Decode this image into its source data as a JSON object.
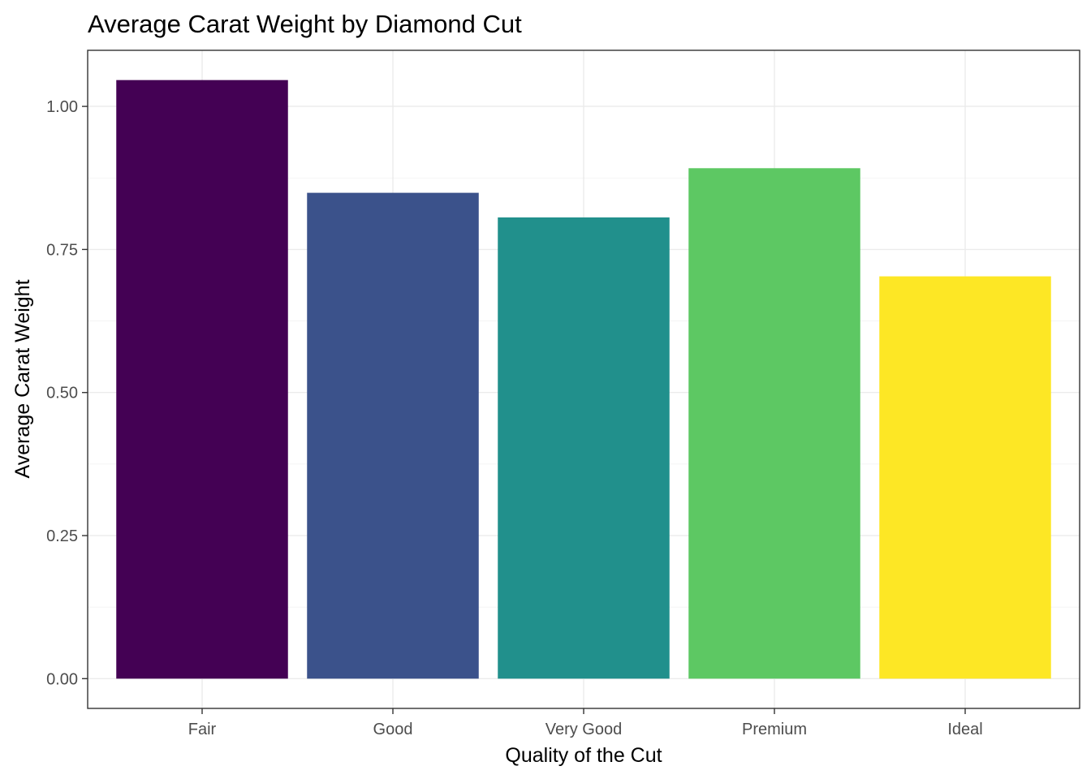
{
  "chart_data": {
    "type": "bar",
    "title": "Average Carat Weight by Diamond Cut",
    "xlabel": "Quality of the Cut",
    "ylabel": "Average Carat Weight",
    "categories": [
      "Fair",
      "Good",
      "Very Good",
      "Premium",
      "Ideal"
    ],
    "values": [
      1.046,
      0.849,
      0.806,
      0.892,
      0.703
    ],
    "colors": [
      "#440154",
      "#3B528B",
      "#21908C",
      "#5DC863",
      "#FDE725"
    ],
    "ylim": [
      -0.052,
      1.098
    ],
    "yticks": [
      0.0,
      0.25,
      0.5,
      0.75,
      1.0
    ],
    "ytick_labels": [
      "0.00",
      "0.25",
      "0.50",
      "0.75",
      "1.00"
    ],
    "grid": true,
    "legend": "none"
  }
}
